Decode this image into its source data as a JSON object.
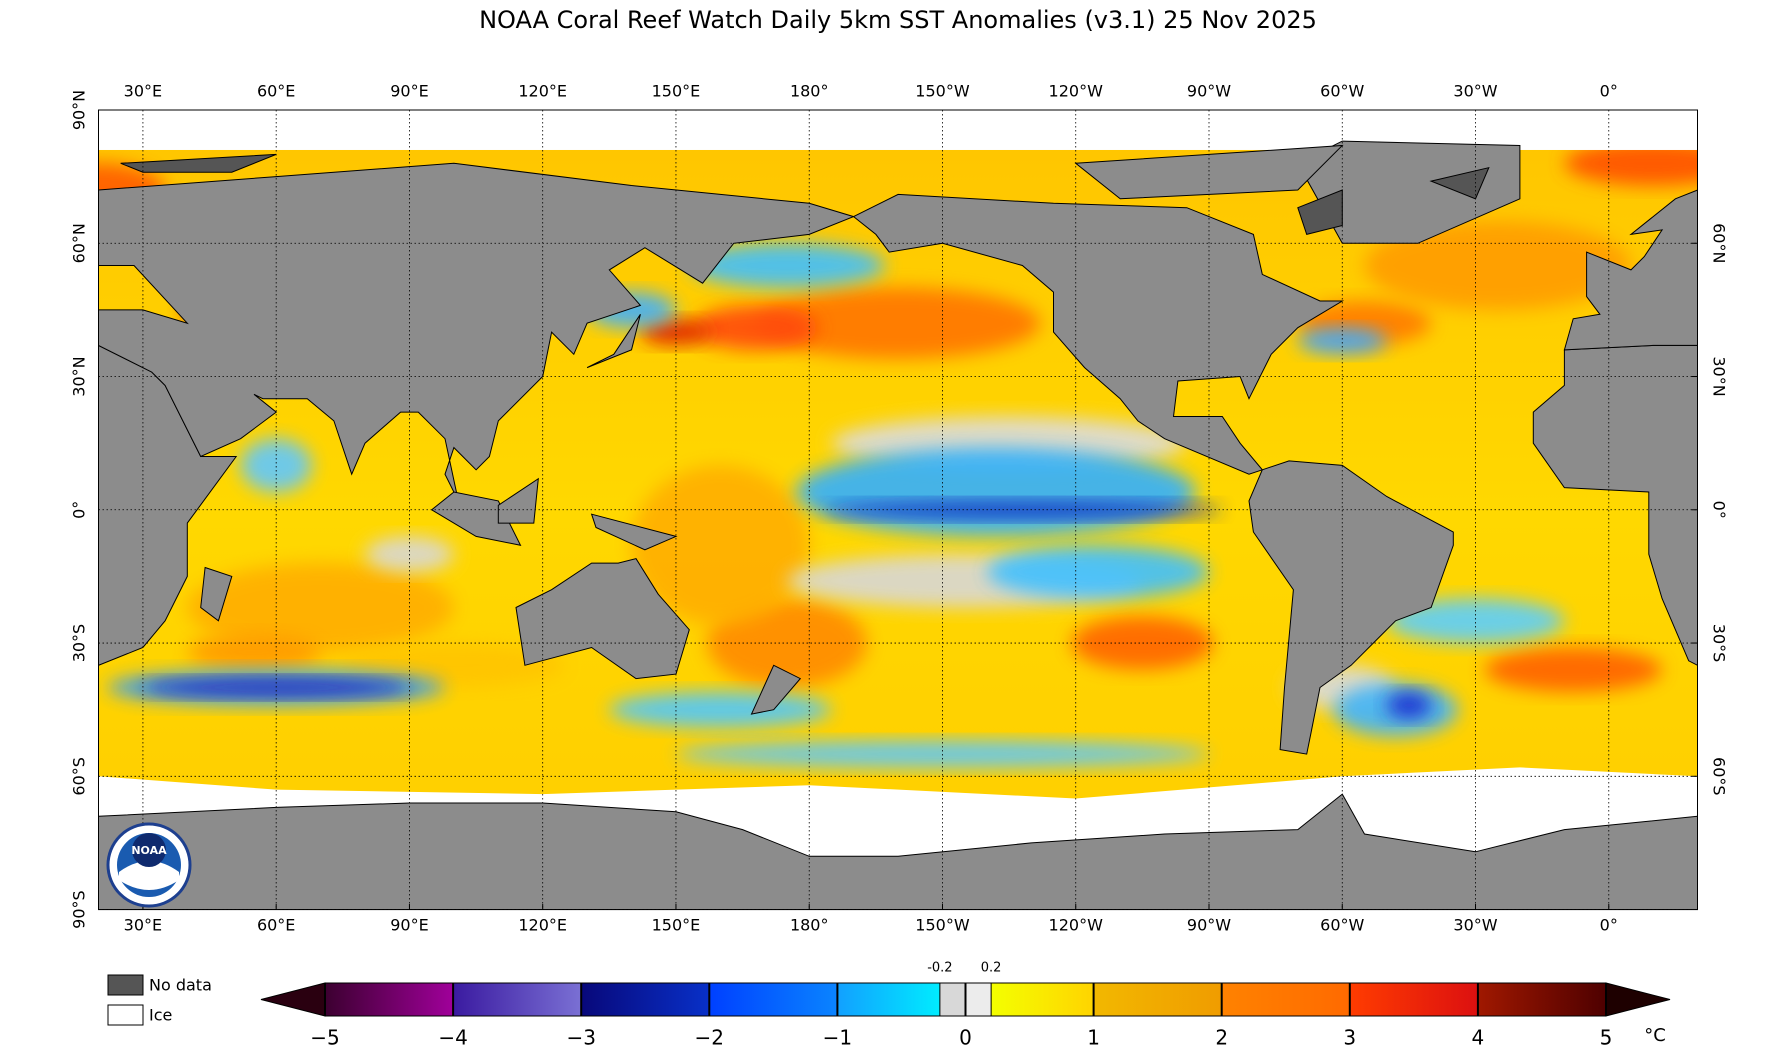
{
  "map": {
    "title": "NOAA Coral Reef Watch Daily 5km SST Anomalies  (v3.1)   25 Nov 2025",
    "top_lon_ticks": [
      {
        "value": 30,
        "label": "30°E"
      },
      {
        "value": 60,
        "label": "60°E"
      },
      {
        "value": 90,
        "label": "90°E"
      },
      {
        "value": 120,
        "label": "120°E"
      },
      {
        "value": 150,
        "label": "150°E"
      },
      {
        "value": 180,
        "label": "180°"
      },
      {
        "value": -150,
        "label": "150°W"
      },
      {
        "value": -120,
        "label": "120°W"
      },
      {
        "value": -90,
        "label": "90°W"
      },
      {
        "value": -60,
        "label": "60°W"
      },
      {
        "value": -30,
        "label": "30°W"
      },
      {
        "value": 0,
        "label": "0°"
      }
    ],
    "bottom_lon_ticks": [
      {
        "value": 30,
        "label": "30°E"
      },
      {
        "value": 60,
        "label": "60°E"
      },
      {
        "value": 90,
        "label": "90°E"
      },
      {
        "value": 120,
        "label": "120°E"
      },
      {
        "value": 150,
        "label": "150°E"
      },
      {
        "value": 180,
        "label": "180°"
      },
      {
        "value": -150,
        "label": "150°W"
      },
      {
        "value": -120,
        "label": "120°W"
      },
      {
        "value": -90,
        "label": "90°W"
      },
      {
        "value": -60,
        "label": "60°W"
      },
      {
        "value": -30,
        "label": "30°W"
      },
      {
        "value": 0,
        "label": "0°"
      }
    ],
    "left_lat_ticks": [
      {
        "value": 90,
        "label": "90°N"
      },
      {
        "value": 60,
        "label": "60°N"
      },
      {
        "value": 30,
        "label": "30°N"
      },
      {
        "value": 0,
        "label": "0°"
      },
      {
        "value": -30,
        "label": "30°S"
      },
      {
        "value": -60,
        "label": "60°S"
      },
      {
        "value": -90,
        "label": "90°S"
      }
    ],
    "right_lat_ticks": [
      {
        "value": 60,
        "label": "60°N"
      },
      {
        "value": 30,
        "label": "30°N"
      },
      {
        "value": 0,
        "label": "0°"
      },
      {
        "value": -30,
        "label": "30°S"
      },
      {
        "value": -60,
        "label": "60°S"
      }
    ],
    "logo_text": "NOAA",
    "legend": [
      {
        "label": "No data",
        "color": "#555555"
      },
      {
        "label": "Ice",
        "color": "#ffffff"
      }
    ],
    "colorbar": {
      "lim": [
        -5,
        5
      ],
      "unit": "°C",
      "ticks": [
        {
          "value": -5,
          "label": "−5"
        },
        {
          "value": -4,
          "label": "−4"
        },
        {
          "value": -3,
          "label": "−3"
        },
        {
          "value": -2,
          "label": "−2"
        },
        {
          "value": -1,
          "label": "−1"
        },
        0,
        1,
        2,
        3,
        4,
        5
      ],
      "small_ticks": [
        -0.2,
        0.2
      ],
      "under_color": "#2a0010",
      "over_color": "#1e0000",
      "segments": [
        {
          "range": [
            -5,
            -4
          ],
          "colors": [
            "#3c0030",
            "#a0009a"
          ]
        },
        {
          "range": [
            -4,
            -3
          ],
          "colors": [
            "#3a1aa0",
            "#7a70d4"
          ]
        },
        {
          "range": [
            -3,
            -2
          ],
          "colors": [
            "#08087a",
            "#0830c8"
          ]
        },
        {
          "range": [
            -2,
            -1
          ],
          "colors": [
            "#0040ff",
            "#0a84ff"
          ]
        },
        {
          "range": [
            -1,
            -0.2
          ],
          "colors": [
            "#12a0ff",
            "#00ecff"
          ]
        },
        {
          "range": [
            -0.2,
            0
          ],
          "colors": [
            "#d8d8d8",
            "#d8d8d8"
          ]
        },
        {
          "range": [
            0,
            0.2
          ],
          "colors": [
            "#ececec",
            "#ececec"
          ]
        },
        {
          "range": [
            0.2,
            1
          ],
          "colors": [
            "#f4ff00",
            "#ffd400"
          ]
        },
        {
          "range": [
            1,
            2
          ],
          "colors": [
            "#f2b800",
            "#f09c00"
          ]
        },
        {
          "range": [
            2,
            3
          ],
          "colors": [
            "#ff8200",
            "#ff6a00"
          ]
        },
        {
          "range": [
            3,
            4
          ],
          "colors": [
            "#ff3c00",
            "#dc1010"
          ]
        },
        {
          "range": [
            4,
            5
          ],
          "colors": [
            "#a01800",
            "#4e0000"
          ]
        }
      ]
    }
  }
}
